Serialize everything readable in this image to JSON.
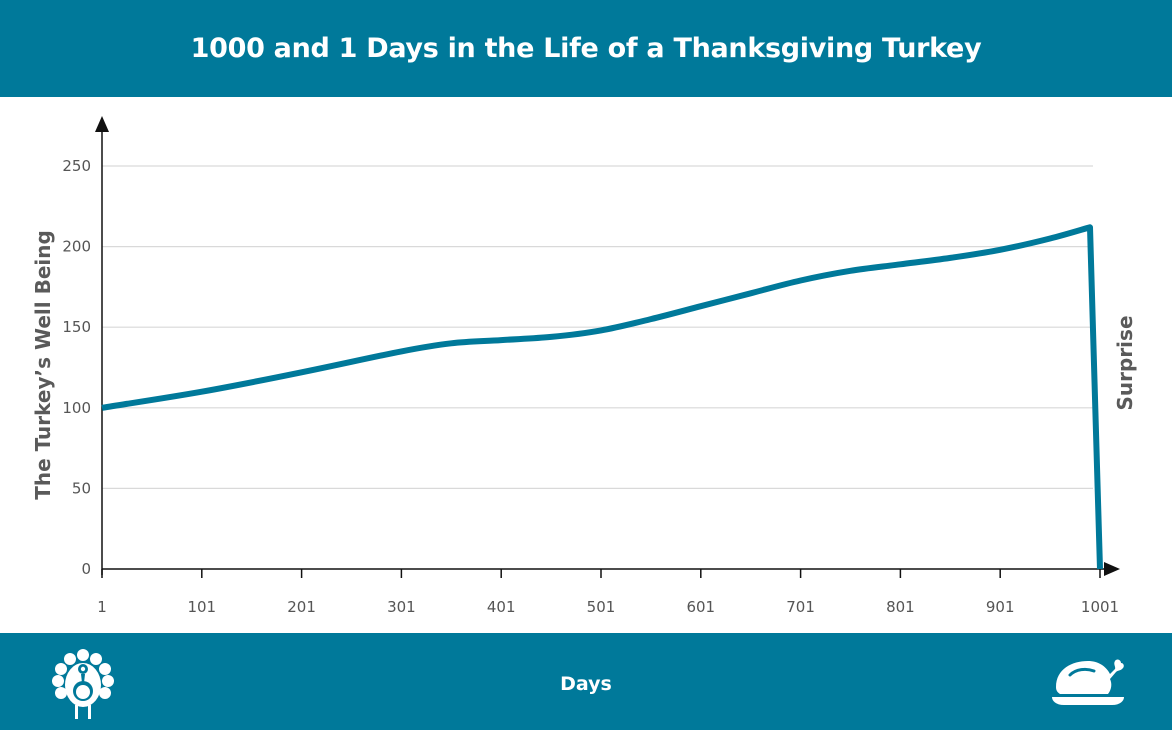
{
  "header": {
    "title": "1000 and 1 Days in the Life of a Thanksgiving Turkey"
  },
  "footer": {
    "x_title": "Days"
  },
  "icons": {
    "left": "turkey-icon",
    "right": "roast-turkey-icon"
  },
  "colors": {
    "banner": "#00799A",
    "line": "#00799A",
    "grid": "#d9d9d9",
    "axis": "#111111"
  },
  "chart_data": {
    "type": "line",
    "title": "1000 and 1 Days in the Life of a Thanksgiving Turkey",
    "xlabel": "Days",
    "ylabel": "The Turkey’s Well Being",
    "annotation": "Surprise",
    "xlim": [
      1,
      1001
    ],
    "ylim": [
      0,
      250
    ],
    "xticks": [
      1,
      101,
      201,
      301,
      401,
      501,
      601,
      701,
      801,
      901,
      1001
    ],
    "yticks": [
      0,
      50,
      100,
      150,
      200,
      250
    ],
    "grid": true,
    "series": [
      {
        "x": [
          1,
          101,
          201,
          301,
          351,
          401,
          451,
          501,
          551,
          601,
          651,
          701,
          751,
          801,
          851,
          901,
          951,
          991,
          1001
        ],
        "y": [
          100,
          110,
          122,
          135,
          140,
          142,
          144,
          148,
          155,
          163,
          171,
          179,
          185,
          189,
          193,
          198,
          205,
          212,
          0
        ]
      }
    ]
  }
}
